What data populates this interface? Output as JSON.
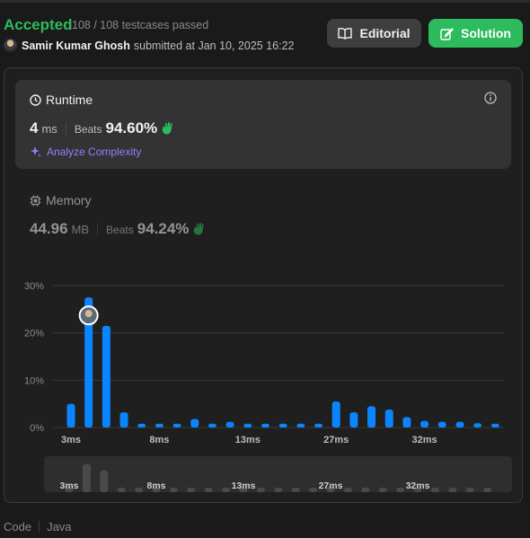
{
  "header": {
    "status": "Accepted",
    "testcases": "108 / 108 testcases passed",
    "username": "Samir Kumar Ghosh",
    "submitted": "submitted at Jan 10, 2025 16:22",
    "editorial_label": "Editorial",
    "solution_label": "Solution"
  },
  "runtime": {
    "title": "Runtime",
    "value": "4",
    "unit": "ms",
    "beats_label": "Beats",
    "beats_pct": "94.60%",
    "analyze_label": "Analyze Complexity"
  },
  "memory": {
    "title": "Memory",
    "value": "44.96",
    "unit": "MB",
    "beats_label": "Beats",
    "beats_pct": "94.24%"
  },
  "chart_data": {
    "type": "bar",
    "y_ticks": [
      "30%",
      "20%",
      "10%",
      "0%"
    ],
    "ylim": [
      0,
      30
    ],
    "x_tick_labels": [
      "3ms",
      "8ms",
      "13ms",
      "27ms",
      "32ms"
    ],
    "values": [
      5,
      27.5,
      21.5,
      3.2,
      0.8,
      0.8,
      0.8,
      1.8,
      0.8,
      1.2,
      0.8,
      0.8,
      0.8,
      0.8,
      0.8,
      5.5,
      3.2,
      4.5,
      3.8,
      2.2,
      1.4,
      1.2,
      1.2,
      0.9,
      0.8
    ],
    "highlight_index": 1,
    "bar_color": "#0a84ff"
  },
  "footer": {
    "code_label": "Code",
    "language": "Java"
  }
}
